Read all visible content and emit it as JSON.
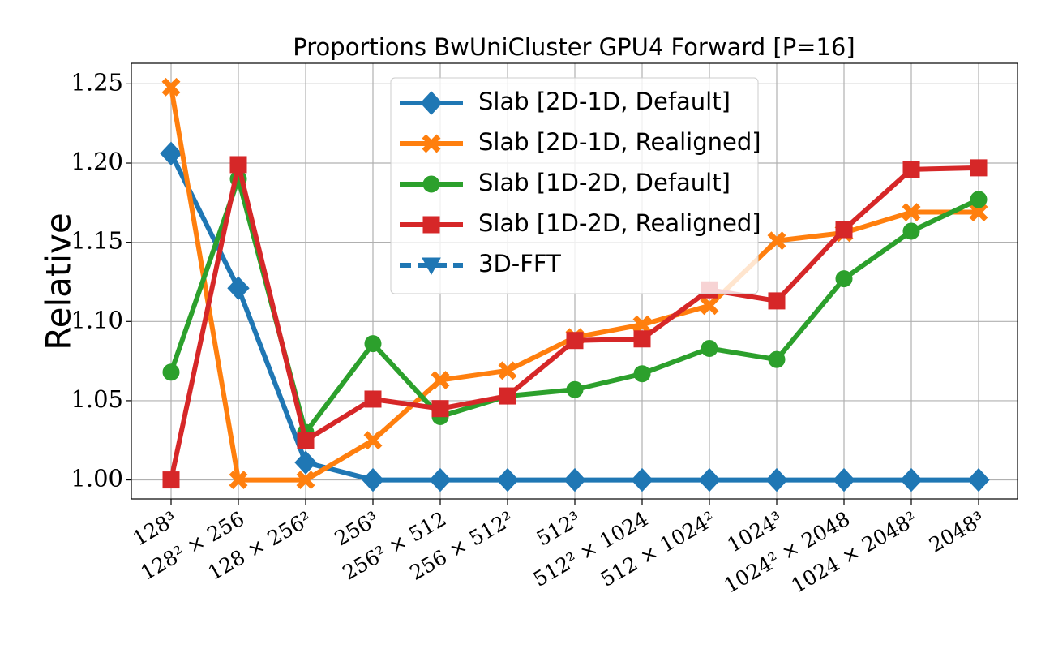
{
  "chart_data": {
    "type": "line",
    "title": "Proportions BwUniCluster GPU4 Forward [P=16]",
    "y_label": "Relative",
    "categories": [
      "128³",
      "128² × 256",
      "128 × 256²",
      "256³",
      "256² × 512",
      "256 × 512²",
      "512³",
      "512² × 1024",
      "512 × 1024²",
      "1024³",
      "1024² × 2048",
      "1024 × 2048²",
      "2048³"
    ],
    "series": [
      {
        "name": "Slab [2D-1D, Default]",
        "color": "#1f77b4",
        "marker": "diamond",
        "values": [
          1.206,
          1.121,
          1.011,
          1.0,
          1.0,
          1.0,
          1.0,
          1.0,
          1.0,
          1.0,
          1.0,
          1.0,
          1.0
        ]
      },
      {
        "name": "Slab [2D-1D, Realigned]",
        "color": "#ff7f0e",
        "marker": "x",
        "values": [
          1.248,
          1.0,
          1.0,
          1.025,
          1.063,
          1.069,
          1.09,
          1.098,
          1.11,
          1.151,
          1.156,
          1.169,
          1.169
        ]
      },
      {
        "name": "Slab [1D-2D, Default]",
        "color": "#2ca02c",
        "marker": "circle",
        "values": [
          1.068,
          1.19,
          1.03,
          1.086,
          1.04,
          1.053,
          1.057,
          1.067,
          1.083,
          1.076,
          1.127,
          1.157,
          1.177
        ]
      },
      {
        "name": "Slab [1D-2D, Realigned]",
        "color": "#d62728",
        "marker": "square",
        "values": [
          1.0,
          1.199,
          1.025,
          1.051,
          1.045,
          1.053,
          1.088,
          1.089,
          1.12,
          1.113,
          1.158,
          1.196,
          1.197
        ]
      },
      {
        "name": "3D-FFT",
        "color": "#1f77b4",
        "marker": "triangle",
        "dashed": true,
        "values": [
          null,
          null,
          null,
          null,
          null,
          null,
          null,
          null,
          null,
          null,
          null,
          null,
          null
        ]
      }
    ],
    "ylim": [
      0.988,
      1.263
    ],
    "yticks": [
      {
        "value": 1.0,
        "label": "1.00"
      },
      1.05,
      {
        "value": 1.1,
        "label": "1.10"
      },
      1.15,
      {
        "value": 1.2,
        "label": "1.20"
      },
      1.25
    ],
    "grid": true,
    "legend": "upper center"
  }
}
